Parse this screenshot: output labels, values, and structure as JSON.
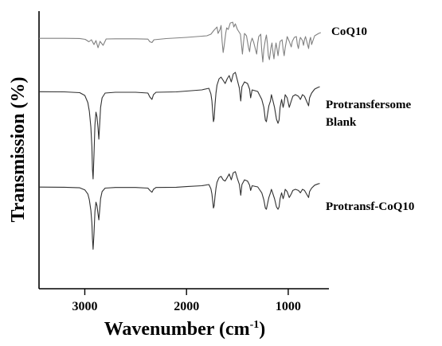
{
  "chart_data": {
    "type": "line",
    "xlabel": {
      "main": "Wavenumber (cm",
      "sup": "-1",
      "end": ")"
    },
    "ylabel": "Transmission (%)",
    "xlim": [
      3450,
      600
    ],
    "x_reversed": true,
    "xticks": [
      {
        "value": 3000,
        "label": "3000"
      },
      {
        "value": 2000,
        "label": "2000"
      },
      {
        "value": 1000,
        "label": "1000"
      }
    ],
    "grid": false,
    "series": [
      {
        "name": "CoQ10",
        "label_lines": [
          "CoQ10"
        ],
        "color": "#808080",
        "points": [
          [
            3450,
            0.2
          ],
          [
            3200,
            0.2
          ],
          [
            3050,
            0.4
          ],
          [
            2995,
            1.5
          ],
          [
            2960,
            4.5
          ],
          [
            2935,
            2
          ],
          [
            2910,
            8
          ],
          [
            2890,
            3
          ],
          [
            2870,
            12
          ],
          [
            2850,
            4
          ],
          [
            2820,
            9
          ],
          [
            2790,
            1
          ],
          [
            2700,
            0.8
          ],
          [
            2500,
            0.8
          ],
          [
            2380,
            1.2
          ],
          [
            2360,
            4.5
          ],
          [
            2340,
            5.5
          ],
          [
            2320,
            2
          ],
          [
            2200,
            0.5
          ],
          [
            2000,
            -1
          ],
          [
            1800,
            -3
          ],
          [
            1760,
            -5
          ],
          [
            1730,
            -10
          ],
          [
            1700,
            -14
          ],
          [
            1690,
            -6
          ],
          [
            1670,
            -11
          ],
          [
            1660,
            -16
          ],
          [
            1650,
            4
          ],
          [
            1640,
            18
          ],
          [
            1630,
            10
          ],
          [
            1615,
            -6
          ],
          [
            1605,
            -13
          ],
          [
            1590,
            -11
          ],
          [
            1570,
            -19
          ],
          [
            1545,
            -20
          ],
          [
            1535,
            -14
          ],
          [
            1520,
            -18
          ],
          [
            1500,
            -11
          ],
          [
            1470,
            -5
          ],
          [
            1460,
            8
          ],
          [
            1450,
            20
          ],
          [
            1440,
            6
          ],
          [
            1430,
            -6
          ],
          [
            1410,
            -3
          ],
          [
            1390,
            12
          ],
          [
            1380,
            17
          ],
          [
            1370,
            6
          ],
          [
            1355,
            0
          ],
          [
            1340,
            5
          ],
          [
            1320,
            15
          ],
          [
            1310,
            20
          ],
          [
            1300,
            6
          ],
          [
            1290,
            -2
          ],
          [
            1270,
            -5
          ],
          [
            1260,
            16
          ],
          [
            1250,
            30
          ],
          [
            1240,
            14
          ],
          [
            1225,
            2
          ],
          [
            1215,
            -4
          ],
          [
            1205,
            6
          ],
          [
            1195,
            22
          ],
          [
            1185,
            27
          ],
          [
            1170,
            12
          ],
          [
            1160,
            6
          ],
          [
            1150,
            18
          ],
          [
            1140,
            26
          ],
          [
            1130,
            14
          ],
          [
            1120,
            6
          ],
          [
            1110,
            14
          ],
          [
            1100,
            22
          ],
          [
            1090,
            12
          ],
          [
            1080,
            4
          ],
          [
            1060,
            2
          ],
          [
            1050,
            14
          ],
          [
            1040,
            22
          ],
          [
            1030,
            12
          ],
          [
            1010,
            -2
          ],
          [
            990,
            4
          ],
          [
            970,
            11
          ],
          [
            960,
            4
          ],
          [
            940,
            -1
          ],
          [
            920,
            -2
          ],
          [
            910,
            8
          ],
          [
            900,
            13
          ],
          [
            890,
            4
          ],
          [
            880,
            -1
          ],
          [
            860,
            3
          ],
          [
            850,
            9
          ],
          [
            840,
            2
          ],
          [
            830,
            -2
          ],
          [
            810,
            8
          ],
          [
            800,
            13
          ],
          [
            790,
            3
          ],
          [
            780,
            -1
          ],
          [
            770,
            8
          ],
          [
            760,
            4
          ],
          [
            740,
            -3
          ],
          [
            700,
            -6
          ],
          [
            680,
            -7
          ]
        ]
      },
      {
        "name": "Protransfersome Blank",
        "label_lines": [
          "Protransfersome",
          "Blank"
        ],
        "color": "#303030",
        "points": [
          [
            3450,
            0.3
          ],
          [
            3200,
            0.5
          ],
          [
            3050,
            1.5
          ],
          [
            3000,
            5
          ],
          [
            2970,
            14
          ],
          [
            2955,
            25
          ],
          [
            2940,
            45
          ],
          [
            2930,
            70
          ],
          [
            2925,
            98
          ],
          [
            2918,
            110
          ],
          [
            2910,
            80
          ],
          [
            2900,
            42
          ],
          [
            2890,
            26
          ],
          [
            2880,
            32
          ],
          [
            2870,
            46
          ],
          [
            2862,
            60
          ],
          [
            2855,
            44
          ],
          [
            2845,
            20
          ],
          [
            2830,
            8
          ],
          [
            2800,
            2
          ],
          [
            2700,
            1
          ],
          [
            2500,
            1
          ],
          [
            2380,
            2
          ],
          [
            2360,
            7
          ],
          [
            2340,
            10
          ],
          [
            2325,
            4
          ],
          [
            2300,
            1
          ],
          [
            2100,
            0.5
          ],
          [
            2000,
            -0.5
          ],
          [
            1850,
            -2
          ],
          [
            1780,
            -4
          ],
          [
            1760,
            3
          ],
          [
            1750,
            12
          ],
          [
            1740,
            30
          ],
          [
            1735,
            38
          ],
          [
            1728,
            34
          ],
          [
            1720,
            16
          ],
          [
            1710,
            2
          ],
          [
            1700,
            -8
          ],
          [
            1680,
            -16
          ],
          [
            1660,
            -18
          ],
          [
            1640,
            -14
          ],
          [
            1620,
            -10
          ],
          [
            1600,
            -16
          ],
          [
            1580,
            -20
          ],
          [
            1560,
            -12
          ],
          [
            1540,
            -22
          ],
          [
            1520,
            -24
          ],
          [
            1500,
            -14
          ],
          [
            1480,
            -4
          ],
          [
            1467,
            12
          ],
          [
            1455,
            -6
          ],
          [
            1430,
            -12
          ],
          [
            1400,
            -10
          ],
          [
            1380,
            -3
          ],
          [
            1370,
            8
          ],
          [
            1355,
            -2
          ],
          [
            1300,
            0
          ],
          [
            1260,
            10
          ],
          [
            1240,
            20
          ],
          [
            1225,
            36
          ],
          [
            1215,
            38
          ],
          [
            1205,
            30
          ],
          [
            1190,
            18
          ],
          [
            1175,
            12
          ],
          [
            1165,
            4
          ],
          [
            1150,
            12
          ],
          [
            1135,
            20
          ],
          [
            1115,
            35
          ],
          [
            1100,
            40
          ],
          [
            1090,
            36
          ],
          [
            1080,
            20
          ],
          [
            1065,
            10
          ],
          [
            1050,
            20
          ],
          [
            1040,
            14
          ],
          [
            1030,
            4
          ],
          [
            1010,
            8
          ],
          [
            990,
            20
          ],
          [
            970,
            12
          ],
          [
            955,
            6
          ],
          [
            930,
            4
          ],
          [
            900,
            6
          ],
          [
            880,
            10
          ],
          [
            860,
            4
          ],
          [
            840,
            6
          ],
          [
            820,
            12
          ],
          [
            800,
            18
          ],
          [
            790,
            8
          ],
          [
            770,
            2
          ],
          [
            740,
            -3
          ],
          [
            710,
            -5
          ],
          [
            690,
            -6
          ]
        ]
      },
      {
        "name": "Protransf-CoQ10",
        "label_lines": [
          "Protransf-CoQ10"
        ],
        "color": "#303030",
        "points": [
          [
            3450,
            0.3
          ],
          [
            3200,
            0.5
          ],
          [
            3050,
            1.5
          ],
          [
            3000,
            5
          ],
          [
            2970,
            12
          ],
          [
            2955,
            22
          ],
          [
            2940,
            40
          ],
          [
            2930,
            62
          ],
          [
            2925,
            88
          ],
          [
            2918,
            106
          ],
          [
            2910,
            80
          ],
          [
            2900,
            42
          ],
          [
            2890,
            26
          ],
          [
            2880,
            32
          ],
          [
            2870,
            46
          ],
          [
            2862,
            56
          ],
          [
            2855,
            42
          ],
          [
            2845,
            20
          ],
          [
            2830,
            8
          ],
          [
            2800,
            2
          ],
          [
            2700,
            1
          ],
          [
            2500,
            1
          ],
          [
            2380,
            2
          ],
          [
            2360,
            6
          ],
          [
            2340,
            9
          ],
          [
            2325,
            4
          ],
          [
            2300,
            1
          ],
          [
            2100,
            0.5
          ],
          [
            2000,
            -0.5
          ],
          [
            1850,
            -2
          ],
          [
            1780,
            -4
          ],
          [
            1760,
            3
          ],
          [
            1750,
            12
          ],
          [
            1740,
            28
          ],
          [
            1735,
            36
          ],
          [
            1728,
            32
          ],
          [
            1720,
            16
          ],
          [
            1710,
            2
          ],
          [
            1700,
            -8
          ],
          [
            1680,
            -16
          ],
          [
            1660,
            -18
          ],
          [
            1640,
            -12
          ],
          [
            1620,
            -10
          ],
          [
            1600,
            -16
          ],
          [
            1580,
            -22
          ],
          [
            1560,
            -12
          ],
          [
            1540,
            -24
          ],
          [
            1520,
            -26
          ],
          [
            1500,
            -14
          ],
          [
            1480,
            -4
          ],
          [
            1467,
            14
          ],
          [
            1455,
            -4
          ],
          [
            1430,
            -12
          ],
          [
            1400,
            -10
          ],
          [
            1380,
            -3
          ],
          [
            1370,
            6
          ],
          [
            1355,
            -2
          ],
          [
            1300,
            0
          ],
          [
            1260,
            10
          ],
          [
            1240,
            22
          ],
          [
            1225,
            36
          ],
          [
            1215,
            38
          ],
          [
            1205,
            30
          ],
          [
            1190,
            18
          ],
          [
            1175,
            10
          ],
          [
            1165,
            4
          ],
          [
            1150,
            12
          ],
          [
            1135,
            20
          ],
          [
            1115,
            34
          ],
          [
            1100,
            38
          ],
          [
            1090,
            34
          ],
          [
            1080,
            20
          ],
          [
            1065,
            10
          ],
          [
            1050,
            20
          ],
          [
            1040,
            14
          ],
          [
            1030,
            4
          ],
          [
            1010,
            8
          ],
          [
            990,
            18
          ],
          [
            970,
            12
          ],
          [
            955,
            6
          ],
          [
            930,
            4
          ],
          [
            900,
            6
          ],
          [
            880,
            10
          ],
          [
            860,
            4
          ],
          [
            840,
            6
          ],
          [
            820,
            12
          ],
          [
            800,
            18
          ],
          [
            790,
            8
          ],
          [
            770,
            2
          ],
          [
            740,
            -3
          ],
          [
            710,
            -5
          ],
          [
            690,
            -6
          ]
        ]
      }
    ]
  }
}
